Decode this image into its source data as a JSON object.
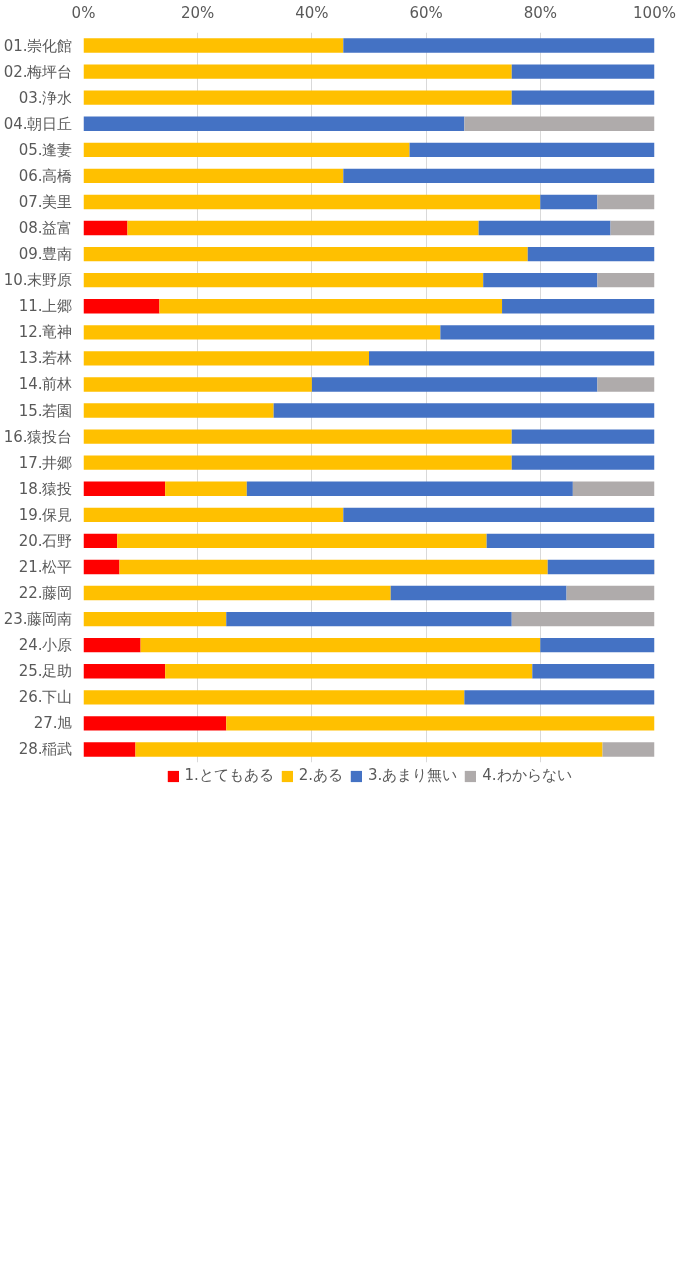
{
  "chart_data": {
    "type": "bar",
    "orientation": "horizontal",
    "stacked": true,
    "categories": [
      "01.崇化館",
      "02.梅坪台",
      "03.浄水",
      "04.朝日丘",
      "05.逢妻",
      "06.高橋",
      "07.美里",
      "08.益富",
      "09.豊南",
      "10.末野原",
      "11.上郷",
      "12.竜神",
      "13.若林",
      "14.前林",
      "15.若園",
      "16.猿投台",
      "17.井郷",
      "18.猿投",
      "19.保見",
      "20.石野",
      "21.松平",
      "22.藤岡",
      "23.藤岡南",
      "24.小原",
      "25.足助",
      "26.下山",
      "27.旭",
      "28.稲武"
    ],
    "series": [
      {
        "name": "1.とてもある",
        "color": "#ff0000",
        "values": [
          0,
          0,
          0,
          0,
          0,
          0,
          0,
          7.7,
          0,
          0,
          13.3,
          0,
          0,
          0,
          0,
          0,
          0,
          14.3,
          0,
          5.9,
          6.3,
          0,
          0,
          10,
          14.3,
          0,
          25,
          9.1
        ]
      },
      {
        "name": "2.ある",
        "color": "#ffc000",
        "values": [
          45.5,
          75,
          75,
          0,
          57.1,
          45.5,
          80,
          61.5,
          77.8,
          70,
          60,
          62.5,
          50,
          40,
          33.3,
          75,
          75,
          14.3,
          45.5,
          64.7,
          75,
          53.8,
          25,
          70,
          64.3,
          66.7,
          75,
          81.8
        ]
      },
      {
        "name": "3.あまり無い",
        "color": "#4472c4",
        "values": [
          54.5,
          25,
          25,
          66.7,
          42.9,
          54.5,
          10,
          23.1,
          22.2,
          20,
          26.7,
          37.5,
          50,
          50,
          66.7,
          25,
          25,
          57.1,
          54.5,
          29.4,
          18.8,
          30.8,
          50,
          20,
          21.4,
          33.3,
          0,
          0
        ]
      },
      {
        "name": "4.わからない",
        "color": "#afabab",
        "values": [
          0,
          0,
          0,
          33.3,
          0,
          0,
          10,
          7.7,
          0,
          10,
          0,
          0,
          0,
          10,
          0,
          0,
          0,
          14.3,
          0,
          0,
          0,
          15.4,
          25,
          0,
          0,
          0,
          0,
          9.1
        ]
      }
    ],
    "xlim": [
      0,
      100
    ],
    "xticks": [
      {
        "value": 0,
        "label": "0%"
      },
      {
        "value": 20,
        "label": "20%"
      },
      {
        "value": 40,
        "label": "40%"
      },
      {
        "value": 60,
        "label": "60%"
      },
      {
        "value": 80,
        "label": "80%"
      },
      {
        "value": 100,
        "label": "100%"
      }
    ],
    "grid": "x",
    "legend": "bottom"
  }
}
